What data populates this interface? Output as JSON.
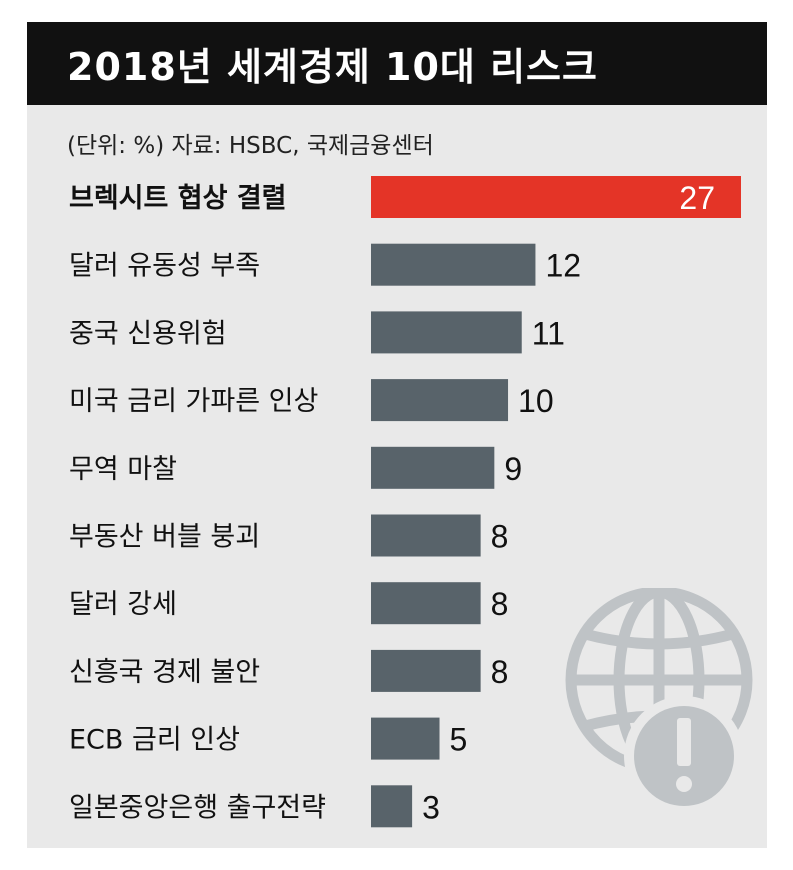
{
  "header": {
    "title": "2018년 세계경제 10대 리스크",
    "source": "(단위: %) 자료: HSBC, 국제금융센터"
  },
  "colors": {
    "highlight": "#e43427",
    "bar": "#58636a",
    "header_bg": "#111111",
    "card_bg": "#e9e9e9",
    "globe": "#bfc3c6"
  },
  "icons": [
    "globe-icon",
    "warning-icon"
  ],
  "chart_data": {
    "type": "bar",
    "orientation": "horizontal",
    "highlight_index": 0,
    "categories": [
      "브렉시트 협상 결렬",
      "달러 유동성 부족",
      "중국 신용위험",
      "미국 금리 가파른 인상",
      "무역 마찰",
      "부동산 버블 붕괴",
      "달러 강세",
      "신흥국 경제 불안",
      "ECB 금리 인상",
      "일본중앙은행 출구전략"
    ],
    "values": [
      27,
      12,
      11,
      10,
      9,
      8,
      8,
      8,
      5,
      3
    ],
    "value_labels": [
      "27",
      "12",
      "11",
      "10",
      "9",
      "8",
      "8",
      "8",
      "5",
      "3"
    ],
    "xlim": [
      0,
      27
    ]
  }
}
